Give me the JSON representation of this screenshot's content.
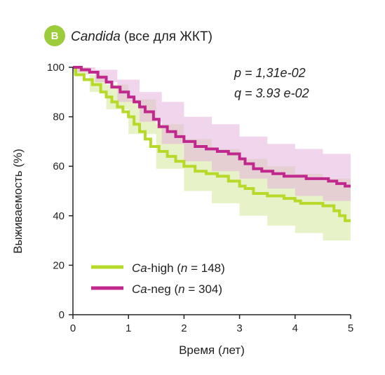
{
  "panel_badge": "B",
  "title": {
    "italic": "Candida",
    "rest": " (все для ЖКТ)"
  },
  "stats": {
    "p": "p = 1,31e-02",
    "q": "q = 3.93 e-02"
  },
  "colors": {
    "ca_high": "#b7d92a",
    "ca_high_band": "#d4e89a",
    "ca_neg": "#c0288e",
    "ca_neg_band": "#e3b3dc",
    "badge": "#9ccb3b",
    "axis": "#222222"
  },
  "legend": [
    {
      "prefix": "Ca",
      "suffix": "-high (",
      "n": "n",
      "tail": " = 148)"
    },
    {
      "prefix": "Ca",
      "suffix": "-neg (",
      "n": "n",
      "tail": " = 304)"
    }
  ],
  "chart_data": {
    "type": "line",
    "title": "Candida (все для ЖКТ)",
    "xlabel": "Время (лет)",
    "ylabel": "Выживаемость (%)",
    "xlim": [
      0,
      5
    ],
    "ylim": [
      0,
      100
    ],
    "x_ticks": [
      0,
      1,
      2,
      3,
      4,
      5
    ],
    "y_ticks": [
      0,
      20,
      40,
      60,
      80,
      100
    ],
    "x_tick_labels": [
      "0",
      "1",
      "2",
      "3",
      "4",
      "5"
    ],
    "y_tick_labels": [
      "0",
      "20",
      "40",
      "60",
      "80",
      "100"
    ],
    "grid": false,
    "legend_position": "bottom-left",
    "series": [
      {
        "name": "Ca-high (n = 148)",
        "step": [
          [
            0,
            100
          ],
          [
            0.05,
            97
          ],
          [
            0.2,
            95
          ],
          [
            0.35,
            93
          ],
          [
            0.5,
            90
          ],
          [
            0.6,
            88
          ],
          [
            0.7,
            86
          ],
          [
            0.8,
            84
          ],
          [
            0.9,
            82
          ],
          [
            1.0,
            80
          ],
          [
            1.1,
            77
          ],
          [
            1.2,
            74
          ],
          [
            1.3,
            71
          ],
          [
            1.4,
            68
          ],
          [
            1.55,
            66
          ],
          [
            1.7,
            64
          ],
          [
            1.85,
            62
          ],
          [
            2.0,
            60
          ],
          [
            2.2,
            58
          ],
          [
            2.4,
            57
          ],
          [
            2.6,
            56
          ],
          [
            2.8,
            54
          ],
          [
            3.0,
            52
          ],
          [
            3.1,
            51
          ],
          [
            3.25,
            49
          ],
          [
            3.5,
            48
          ],
          [
            3.8,
            47
          ],
          [
            4.0,
            46
          ],
          [
            4.1,
            45
          ],
          [
            4.3,
            45
          ],
          [
            4.5,
            44
          ],
          [
            4.7,
            42
          ],
          [
            4.8,
            40
          ],
          [
            4.9,
            38
          ],
          [
            5.0,
            38
          ]
        ],
        "ci_upper": [
          [
            0,
            100
          ],
          [
            0.3,
            97
          ],
          [
            0.6,
            93
          ],
          [
            1.0,
            87
          ],
          [
            1.5,
            77
          ],
          [
            2.0,
            71
          ],
          [
            2.5,
            67
          ],
          [
            3.0,
            63
          ],
          [
            3.5,
            60
          ],
          [
            4.0,
            57
          ],
          [
            4.5,
            55
          ],
          [
            5.0,
            51
          ]
        ],
        "ci_lower": [
          [
            0,
            97
          ],
          [
            0.3,
            90
          ],
          [
            0.6,
            83
          ],
          [
            1.0,
            73
          ],
          [
            1.5,
            59
          ],
          [
            2.0,
            50
          ],
          [
            2.5,
            45
          ],
          [
            3.0,
            40
          ],
          [
            3.5,
            36
          ],
          [
            4.0,
            33
          ],
          [
            4.5,
            30
          ],
          [
            5.0,
            24
          ]
        ]
      },
      {
        "name": "Ca-neg (n = 304)",
        "step": [
          [
            0,
            100
          ],
          [
            0.15,
            99
          ],
          [
            0.3,
            98
          ],
          [
            0.45,
            96
          ],
          [
            0.6,
            94
          ],
          [
            0.7,
            92
          ],
          [
            0.85,
            90
          ],
          [
            1.0,
            88
          ],
          [
            1.1,
            86
          ],
          [
            1.2,
            84
          ],
          [
            1.3,
            82
          ],
          [
            1.45,
            79
          ],
          [
            1.55,
            76
          ],
          [
            1.7,
            74
          ],
          [
            1.85,
            72
          ],
          [
            2.0,
            70
          ],
          [
            2.2,
            68
          ],
          [
            2.4,
            67
          ],
          [
            2.6,
            66
          ],
          [
            2.8,
            65
          ],
          [
            3.0,
            63
          ],
          [
            3.1,
            61
          ],
          [
            3.25,
            59
          ],
          [
            3.4,
            58
          ],
          [
            3.6,
            57
          ],
          [
            3.8,
            56
          ],
          [
            4.0,
            56
          ],
          [
            4.2,
            55
          ],
          [
            4.4,
            55
          ],
          [
            4.6,
            54
          ],
          [
            4.75,
            53
          ],
          [
            4.9,
            52
          ],
          [
            5.0,
            52
          ]
        ],
        "ci_upper": [
          [
            0,
            100
          ],
          [
            0.4,
            99
          ],
          [
            0.8,
            95
          ],
          [
            1.2,
            90
          ],
          [
            1.6,
            86
          ],
          [
            2.0,
            80
          ],
          [
            2.5,
            77
          ],
          [
            3.0,
            72
          ],
          [
            3.5,
            69
          ],
          [
            4.0,
            67
          ],
          [
            4.5,
            65
          ],
          [
            5.0,
            64
          ]
        ],
        "ci_lower": [
          [
            0,
            98
          ],
          [
            0.4,
            94
          ],
          [
            0.8,
            86
          ],
          [
            1.2,
            78
          ],
          [
            1.6,
            69
          ],
          [
            2.0,
            62
          ],
          [
            2.5,
            58
          ],
          [
            3.0,
            55
          ],
          [
            3.5,
            51
          ],
          [
            4.0,
            48
          ],
          [
            4.5,
            46
          ],
          [
            5.0,
            44
          ]
        ]
      }
    ]
  }
}
